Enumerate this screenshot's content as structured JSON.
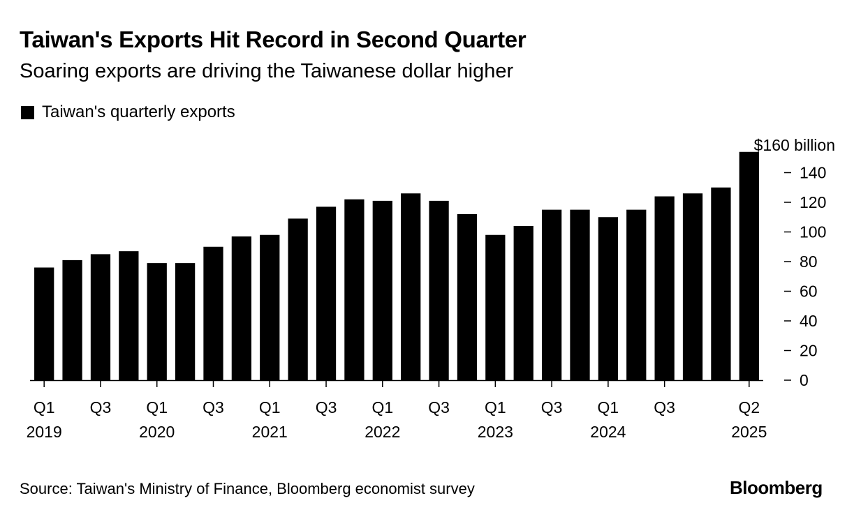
{
  "header": {
    "title": "Taiwan's Exports Hit Record in Second Quarter",
    "subtitle": "Soaring exports are driving the Taiwanese dollar higher"
  },
  "legend": {
    "label": "Taiwan's quarterly exports"
  },
  "footer": {
    "source": "Source: Taiwan's Ministry of Finance, Bloomberg economist survey",
    "brand": "Bloomberg"
  },
  "colors": {
    "bar": "#000000",
    "axis": "#000000",
    "background": "#ffffff"
  },
  "chart_data": {
    "type": "bar",
    "title": "Taiwan's Exports Hit Record in Second Quarter",
    "subtitle": "Soaring exports are driving the Taiwanese dollar higher",
    "series": [
      {
        "name": "Taiwan's quarterly exports",
        "values": [
          76,
          81,
          85,
          87,
          79,
          79,
          90,
          97,
          98,
          109,
          117,
          122,
          121,
          126,
          121,
          112,
          98,
          104,
          115,
          115,
          110,
          115,
          124,
          126,
          130,
          154
        ]
      }
    ],
    "categories": [
      "Q1 2019",
      "Q2 2019",
      "Q3 2019",
      "Q4 2019",
      "Q1 2020",
      "Q2 2020",
      "Q3 2020",
      "Q4 2020",
      "Q1 2021",
      "Q2 2021",
      "Q3 2021",
      "Q4 2021",
      "Q1 2022",
      "Q2 2022",
      "Q3 2022",
      "Q4 2022",
      "Q1 2023",
      "Q2 2023",
      "Q3 2023",
      "Q4 2023",
      "Q1 2024",
      "Q2 2024",
      "Q3 2024",
      "Q4 2024",
      "Q1 2025",
      "Q2 2025"
    ],
    "x_tick_labels": [
      {
        "index": 0,
        "quarter": "Q1",
        "year": "2019"
      },
      {
        "index": 2,
        "quarter": "Q3",
        "year": ""
      },
      {
        "index": 4,
        "quarter": "Q1",
        "year": "2020"
      },
      {
        "index": 6,
        "quarter": "Q3",
        "year": ""
      },
      {
        "index": 8,
        "quarter": "Q1",
        "year": "2021"
      },
      {
        "index": 10,
        "quarter": "Q3",
        "year": ""
      },
      {
        "index": 12,
        "quarter": "Q1",
        "year": "2022"
      },
      {
        "index": 14,
        "quarter": "Q3",
        "year": ""
      },
      {
        "index": 16,
        "quarter": "Q1",
        "year": "2023"
      },
      {
        "index": 18,
        "quarter": "Q3",
        "year": ""
      },
      {
        "index": 20,
        "quarter": "Q1",
        "year": "2024"
      },
      {
        "index": 22,
        "quarter": "Q3",
        "year": ""
      },
      {
        "index": 25,
        "quarter": "Q2",
        "year": "2025"
      }
    ],
    "y_ticks": [
      0,
      20,
      40,
      60,
      80,
      100,
      120,
      140
    ],
    "y_top_label": "$160 billion",
    "ylim": [
      0,
      160
    ],
    "xlabel": "",
    "ylabel": "",
    "y_axis_side": "right",
    "grid": false
  }
}
